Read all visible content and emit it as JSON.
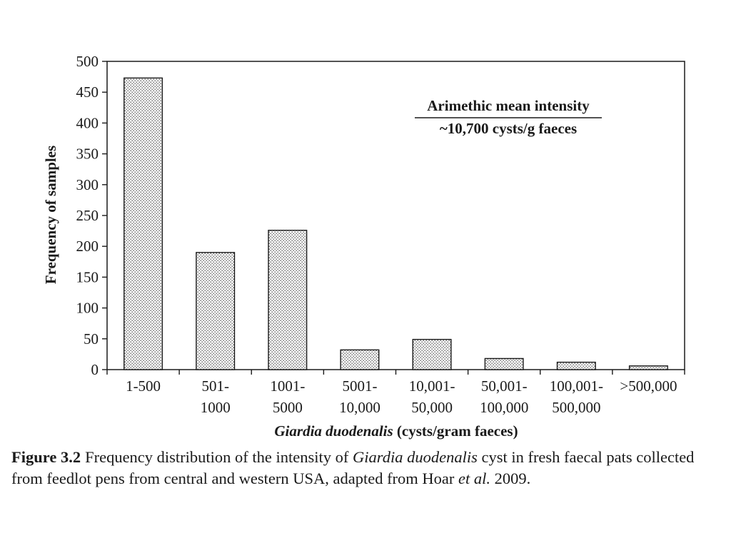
{
  "chart_data": {
    "type": "bar",
    "categories": [
      [
        "1-500"
      ],
      [
        "501-",
        "1000"
      ],
      [
        "1001-",
        "5000"
      ],
      [
        "5001-",
        "10,000"
      ],
      [
        "10,001-",
        "50,000"
      ],
      [
        "50,001-",
        "100,000"
      ],
      [
        "100,001-",
        "500,000"
      ],
      [
        ">500,000"
      ]
    ],
    "values": [
      473,
      190,
      226,
      32,
      49,
      18,
      12,
      6
    ],
    "ylabel": "Frequency of samples",
    "xlabel": {
      "italic": "Giardia duodenalis",
      "rest": " (cysts/gram faeces)"
    },
    "ylim": [
      0,
      500
    ],
    "yticks": [
      0,
      50,
      100,
      150,
      200,
      250,
      300,
      350,
      400,
      450,
      500
    ],
    "grid": false,
    "bar_fill": "stippled",
    "annotation": {
      "line1": "Arimethic mean intensity",
      "line2": "~10,700 cysts/g faeces"
    }
  },
  "caption": {
    "label": "Figure 3.2",
    "parts": [
      {
        "text": "Frequency distribution of the intensity of ",
        "italic": false
      },
      {
        "text": "Giardia duodenalis",
        "italic": true
      },
      {
        "text": " cyst in fresh faecal pats collected from feedlot pens from central and western USA, adapted from Hoar ",
        "italic": false
      },
      {
        "text": "et al.",
        "italic": true
      },
      {
        "text": " 2009.",
        "italic": false
      }
    ]
  }
}
